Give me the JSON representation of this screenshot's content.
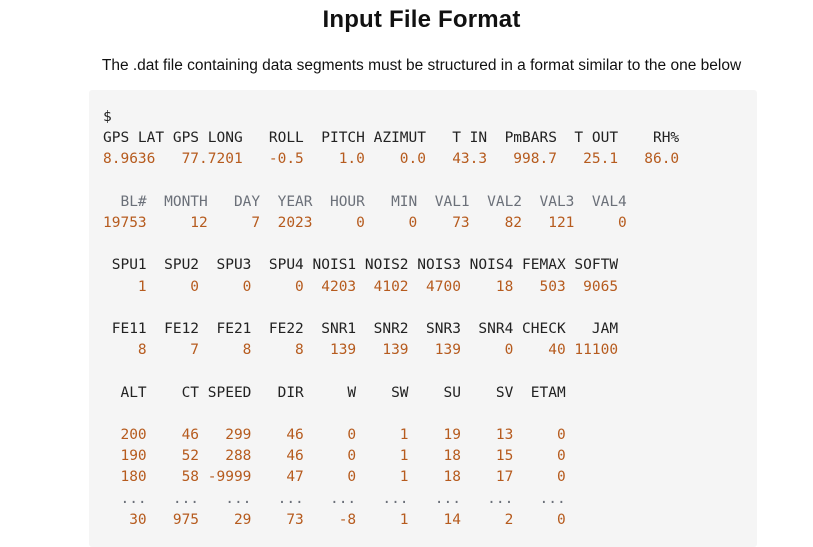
{
  "page": {
    "title": "Input File Format",
    "subtitle": "The .dat file containing data segments must be structured in a format similar to the one below"
  },
  "code": {
    "marker": "$",
    "gps_header": "GPS LAT GPS LONG   ROLL  PITCH AZIMUT   T IN  PmBARS  T OUT    RH%",
    "gps_values": "8.9636   77.7201   -0.5    1.0    0.0   43.3   998.7   25.1   86.0",
    "block_header": "  BL#  MONTH   DAY  YEAR  HOUR   MIN  VAL1  VAL2  VAL3  VAL4",
    "block_values": "19753     12     7  2023     0     0    73    82   121     0",
    "spu_header": " SPU1  SPU2  SPU3  SPU4 NOIS1 NOIS2 NOIS3 NOIS4 FEMAX SOFTW",
    "spu_values": "    1     0     0     0  4203  4102  4700    18   503  9065",
    "fe_header": " FE11  FE12  FE21  FE22  SNR1  SNR2  SNR3  SNR4 CHECK   JAM",
    "fe_values": "    8     7     8     8   139   139   139     0    40 11100",
    "alt_header": "  ALT    CT SPEED   DIR     W    SW    SU    SV  ETAM",
    "alt_rows": [
      "  200    46   299    46     0     1    19    13     0",
      "  190    52   288    46     0     1    18    15     0",
      "  180    58 -9999    47     0     1    18    17     0"
    ],
    "ellipsis_row": "  ...   ...   ...   ...   ...   ...   ...   ...   ...",
    "last_row": "   30   975    29    73    -8     1    14     2     0"
  }
}
